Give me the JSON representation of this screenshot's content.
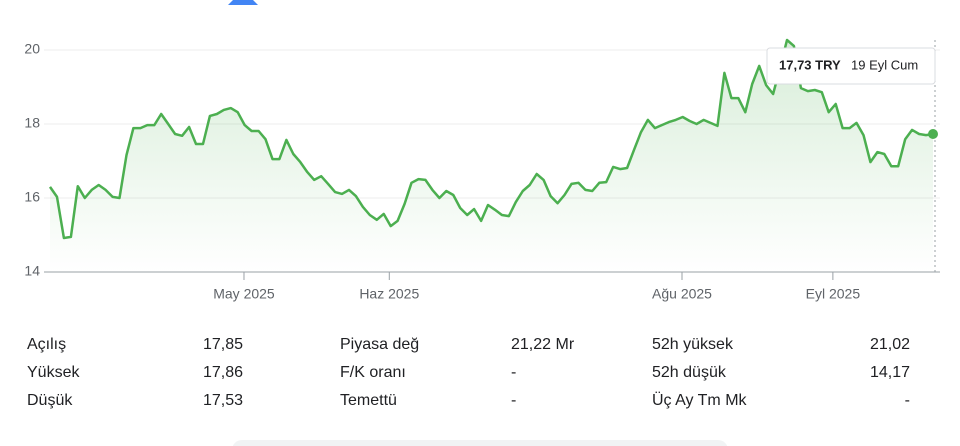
{
  "chart_data": {
    "type": "line",
    "series": [
      {
        "name": null,
        "color": "#4caf50",
        "values": [
          16.3,
          16.03,
          14.92,
          14.95,
          16.32,
          16.0,
          16.22,
          16.35,
          16.22,
          16.03,
          16.0,
          17.16,
          17.89,
          17.89,
          17.97,
          17.97,
          18.27,
          18.0,
          17.73,
          17.68,
          17.92,
          17.46,
          17.46,
          18.22,
          18.27,
          18.38,
          18.43,
          18.32,
          17.97,
          17.81,
          17.81,
          17.59,
          17.05,
          17.05,
          17.57,
          17.19,
          16.97,
          16.7,
          16.49,
          16.59,
          16.38,
          16.16,
          16.11,
          16.22,
          16.05,
          15.76,
          15.54,
          15.41,
          15.57,
          15.24,
          15.38,
          15.84,
          16.41,
          16.51,
          16.49,
          16.22,
          16.0,
          16.19,
          16.08,
          15.73,
          15.54,
          15.7,
          15.38,
          15.81,
          15.68,
          15.54,
          15.51,
          15.89,
          16.19,
          16.35,
          16.65,
          16.49,
          16.05,
          15.86,
          16.08,
          16.38,
          16.41,
          16.22,
          16.19,
          16.41,
          16.43,
          16.84,
          16.78,
          16.81,
          17.3,
          17.78,
          18.11,
          17.89,
          17.97,
          18.05,
          18.11,
          18.19,
          18.08,
          18.0,
          18.11,
          18.03,
          17.95,
          19.38,
          18.7,
          18.7,
          18.32,
          19.08,
          19.57,
          19.05,
          18.81,
          19.51,
          20.27,
          20.11,
          18.97,
          18.89,
          18.92,
          18.86,
          18.32,
          18.54,
          17.89,
          17.89,
          18.03,
          17.7,
          16.97,
          17.24,
          17.19,
          16.86,
          16.86,
          17.59,
          17.84,
          17.73,
          17.7,
          17.73
        ]
      }
    ],
    "xlim": [
      0,
      127
    ],
    "xticks": [
      {
        "value": 27.9,
        "label": "May 2025"
      },
      {
        "value": 48.8,
        "label": "Haz 2025"
      },
      {
        "value": 90.9,
        "label": "Ağu 2025"
      },
      {
        "value": 112.6,
        "label": "Eyl 2025"
      }
    ],
    "ylim": [
      14,
      20
    ],
    "yticks": [
      14,
      16,
      18,
      20
    ],
    "grid": true,
    "tooltip": {
      "price": "17,73 TRY",
      "date": "19 Eyl Cum"
    }
  },
  "stats": [
    {
      "label": "Açılış",
      "value": "17,85"
    },
    {
      "label": "Yüksek",
      "value": "17,86"
    },
    {
      "label": "Düşük",
      "value": "17,53"
    },
    {
      "label": "Piyasa değ",
      "value": "21,22 Mr"
    },
    {
      "label": "F/K oranı",
      "value": "-"
    },
    {
      "label": "Temettü",
      "value": "-"
    },
    {
      "label": "52h yüksek",
      "value": "21,02"
    },
    {
      "label": "52h düşük",
      "value": "14,17"
    },
    {
      "label": "Üç Ay Tm Mk",
      "value": "-"
    }
  ]
}
